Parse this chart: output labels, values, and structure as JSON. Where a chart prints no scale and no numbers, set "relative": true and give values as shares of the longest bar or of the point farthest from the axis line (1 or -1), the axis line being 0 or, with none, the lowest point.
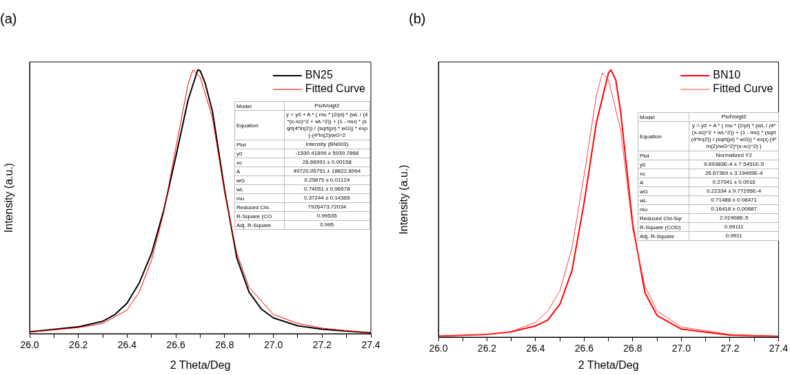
{
  "chart_data": [
    {
      "type": "line",
      "title": "(a)",
      "xlabel": "2 Theta/Deg",
      "ylabel": "Intensity (a.u.)",
      "relative": true,
      "xlim": [
        26.0,
        27.4
      ],
      "xticks": [
        {
          "value": 26,
          "label": "26.0"
        },
        {
          "value": 26.1,
          "label": null
        },
        26.2,
        {
          "value": 26.3,
          "label": null
        },
        26.4,
        {
          "value": 26.5,
          "label": null
        },
        26.6,
        {
          "value": 26.7,
          "label": null
        },
        26.8,
        {
          "value": 26.9,
          "label": null
        },
        {
          "value": 27,
          "label": "27.0"
        },
        {
          "value": 27.1,
          "label": null
        },
        27.2,
        {
          "value": 27.3,
          "label": null
        },
        27.4
      ],
      "tick_labels": "x",
      "grid": false,
      "legend": "top right",
      "marker": "none",
      "series": [
        {
          "name": "BN25",
          "color": "#000000",
          "x": [
            26.0,
            26.2,
            26.3,
            26.35,
            26.4,
            26.45,
            26.5,
            26.55,
            26.6,
            26.65,
            26.68,
            26.69,
            26.7,
            26.72,
            26.75,
            26.8,
            26.85,
            26.9,
            26.95,
            27.0,
            27.1,
            27.2,
            27.4
          ],
          "values": [
            0.007,
            0.026,
            0.047,
            0.073,
            0.116,
            0.193,
            0.304,
            0.467,
            0.672,
            0.886,
            0.972,
            1.0,
            0.996,
            0.95,
            0.843,
            0.544,
            0.287,
            0.158,
            0.094,
            0.06,
            0.03,
            0.017,
            0.003
          ]
        },
        {
          "name": "Fitted Curve",
          "color": "#ff0000",
          "x": [
            26.0,
            26.2,
            26.3,
            26.4,
            26.45,
            26.5,
            26.55,
            26.6,
            26.65,
            26.67,
            26.7,
            26.75,
            26.8,
            26.85,
            26.9,
            27.0,
            27.1,
            27.2,
            27.4
          ],
          "values": [
            0.006,
            0.023,
            0.039,
            0.09,
            0.158,
            0.278,
            0.458,
            0.706,
            0.946,
            1.0,
            0.972,
            0.818,
            0.535,
            0.304,
            0.176,
            0.073,
            0.039,
            0.021,
            0.002
          ]
        }
      ],
      "annotations": [
        "Model",
        "PsdVoigt2",
        "Equation",
        "y = y0 + A * ( mu * (2/pi) * (wL / (4*(x-xc)^2 + wL^2)) + (1 - mu) * (sqrt(4*ln(2)) / (sqrt(pi) * wG)) * exp(-(4*ln(2)/wG^2",
        "Plot",
        "Intensity (BN003)",
        "y0",
        "-1530.41899 ± 5939.7868",
        "xc",
        "26.66991 ± 0.00158",
        "A",
        "49720.95751 ± 18822.6994",
        "wG",
        "0.25875 ± 0.01124",
        "wL",
        "0.74051 ± 0.96578",
        "mu",
        "0.37244 ± 0.14365",
        "Reduced Chi-",
        "7926473.72034",
        "R-Square (CO",
        "0.99535",
        "Adj. R-Square",
        "0.995"
      ]
    },
    {
      "type": "line",
      "title": "(b)",
      "xlabel": "2 Theta/Deg",
      "ylabel": "Intensity (a.u.)",
      "relative": true,
      "xlim": [
        26.0,
        27.4
      ],
      "xticks": [
        {
          "value": 26,
          "label": "26.0"
        },
        {
          "value": 26.1,
          "label": null
        },
        26.2,
        {
          "value": 26.3,
          "label": null
        },
        26.4,
        {
          "value": 26.5,
          "label": null
        },
        26.6,
        {
          "value": 26.7,
          "label": null
        },
        26.8,
        {
          "value": 26.9,
          "label": null
        },
        {
          "value": 27,
          "label": "27.0"
        },
        {
          "value": 27.1,
          "label": null
        },
        27.2,
        {
          "value": 27.3,
          "label": null
        },
        27.4
      ],
      "tick_labels": "x",
      "grid": false,
      "legend": "top right",
      "marker": "none",
      "series": [
        {
          "name": "BN10",
          "color": "#ff0000",
          "x": [
            26.0,
            26.2,
            26.3,
            26.4,
            26.45,
            26.5,
            26.55,
            26.6,
            26.65,
            26.7,
            26.71,
            26.73,
            26.75,
            26.8,
            26.85,
            26.9,
            27.0,
            27.2,
            27.4
          ],
          "values": [
            0.004,
            0.01,
            0.02,
            0.042,
            0.064,
            0.123,
            0.25,
            0.505,
            0.802,
            0.989,
            1.0,
            0.963,
            0.844,
            0.42,
            0.166,
            0.081,
            0.03,
            0.008,
            0.003
          ]
        },
        {
          "name": "Fitted Curve",
          "color": "#ff4040",
          "x": [
            26.0,
            26.2,
            26.3,
            26.4,
            26.45,
            26.5,
            26.55,
            26.6,
            26.65,
            26.675,
            26.7,
            26.75,
            26.8,
            26.85,
            26.9,
            27.0,
            27.2,
            27.4
          ],
          "values": [
            0.004,
            0.01,
            0.021,
            0.055,
            0.098,
            0.174,
            0.335,
            0.607,
            0.904,
            0.989,
            0.963,
            0.776,
            0.403,
            0.191,
            0.098,
            0.038,
            0.01,
            0.003
          ]
        }
      ],
      "annotations": [
        "Model",
        "PsdVoigt2",
        "Equation",
        "y = y0 + A * ( mu * (2/pi) * (wL / (4*(x-xc)^2 + wL^2)) + (1 - mu) * (sqrt(4*ln(2)) / (sqrt(pi) * wG)) * exp(-(4*ln(2)/wG^2)*(x-xc)^2) )",
        "Plot",
        "Normalized Y2",
        "y0",
        "9.69383E-4 ± 7.5451E-5",
        "xc",
        "26.67369 ± 3.19499E-4",
        "A",
        "0.27041 ± 0.0016",
        "wG",
        "0.22334 ± 9.77295E-4",
        "wL",
        "0.71488 ± 0.08471",
        "mu",
        "0.16418 ± 0.00687",
        "Reduced Chi-Sqr",
        "2.01908E-5",
        "R-Square (COD)",
        "0.99111",
        "Adj. R-Square",
        "0.9911"
      ]
    }
  ]
}
